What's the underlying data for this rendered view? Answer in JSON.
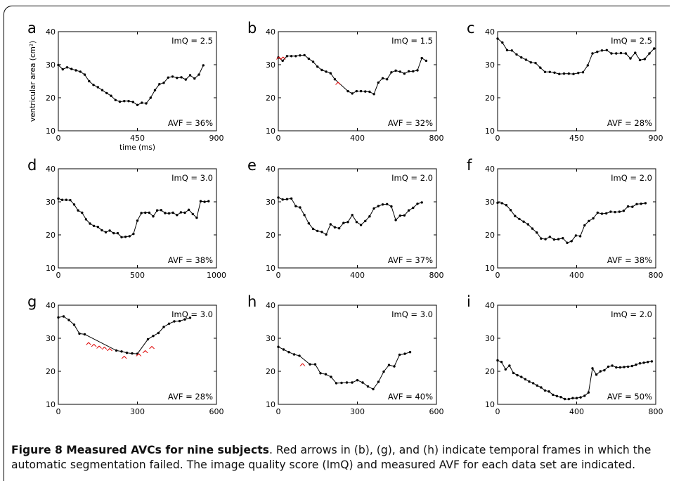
{
  "caption": {
    "title": "Figure 8 Measured AVCs for nine subjects",
    "text": ". Red arrows in (b), (g), and (h) indicate temporal frames in which the automatic segmentation failed. The image quality score (ImQ) and measured AVF for each data set are indicated."
  },
  "colors": {
    "line": "#000000",
    "arrow": "#e01010",
    "marker": "#000000"
  },
  "chart_data": [
    {
      "panel": "a",
      "type": "line",
      "xlim": [
        0,
        900
      ],
      "xticks": [
        0,
        450,
        900
      ],
      "ylim": [
        10,
        40
      ],
      "yticks": [
        10,
        20,
        30,
        40
      ],
      "xlabel": "time (ms)",
      "ylabel": "ventricular area (cm²)",
      "imq": "ImQ = 2.5",
      "avf": "AVF = 36%",
      "x": [
        0,
        25,
        50,
        75,
        100,
        125,
        150,
        175,
        200,
        225,
        250,
        275,
        300,
        325,
        350,
        375,
        400,
        425,
        450,
        475,
        500,
        525,
        550,
        575,
        600,
        625,
        650,
        675,
        700,
        725,
        750,
        775,
        800,
        825
      ],
      "y": [
        29.9,
        28.6,
        29.2,
        28.7,
        28.3,
        27.9,
        27.0,
        25.0,
        23.9,
        23.2,
        22.3,
        21.4,
        20.6,
        19.3,
        18.8,
        19.0,
        19.0,
        18.7,
        17.8,
        18.5,
        18.3,
        20.0,
        22.3,
        24.1,
        24.5,
        26.1,
        26.4,
        26.0,
        26.2,
        25.5,
        26.8,
        25.8,
        27.0,
        29.8
      ],
      "arrows": []
    },
    {
      "panel": "b",
      "type": "line",
      "xlim": [
        0,
        800
      ],
      "xticks": [
        0,
        400,
        800
      ],
      "ylim": [
        10,
        40
      ],
      "yticks": [
        10,
        20,
        30,
        40
      ],
      "xlabel": "",
      "ylabel": "",
      "imq": "ImQ = 1.5",
      "avf": "AVF = 32%",
      "x": [
        0,
        22,
        44,
        66,
        88,
        110,
        132,
        154,
        176,
        198,
        220,
        242,
        264,
        286,
        352,
        374,
        396,
        418,
        440,
        462,
        484,
        506,
        528,
        550,
        572,
        594,
        616,
        638,
        660,
        682,
        704,
        726,
        748
      ],
      "y": [
        32.2,
        31.2,
        32.6,
        32.6,
        32.6,
        32.8,
        32.9,
        31.8,
        30.9,
        29.4,
        28.4,
        27.9,
        27.4,
        25.6,
        22.0,
        21.3,
        22.0,
        22.0,
        21.9,
        21.8,
        21.1,
        24.6,
        25.9,
        25.6,
        27.7,
        28.2,
        27.9,
        27.3,
        28.0,
        28.0,
        28.3,
        32.0,
        31.2
      ],
      "arrows": [
        [
          3,
          32.2
        ],
        [
          24,
          32.2
        ],
        [
          302,
          24.6
        ]
      ]
    },
    {
      "panel": "c",
      "type": "line",
      "xlim": [
        0,
        900
      ],
      "xticks": [
        0,
        450,
        900
      ],
      "ylim": [
        10,
        40
      ],
      "yticks": [
        10,
        20,
        30,
        40
      ],
      "xlabel": "",
      "ylabel": "",
      "imq": "ImQ = 2.5",
      "avf": "AVF = 28%",
      "x": [
        0,
        27,
        54,
        81,
        108,
        135,
        162,
        189,
        216,
        243,
        270,
        297,
        324,
        351,
        378,
        405,
        432,
        459,
        486,
        513,
        540,
        567,
        594,
        621,
        648,
        675,
        702,
        729,
        756,
        783,
        810,
        837,
        864,
        891
      ],
      "y": [
        37.9,
        36.7,
        34.4,
        34.3,
        33.1,
        32.2,
        31.5,
        30.7,
        30.5,
        29.1,
        27.8,
        27.8,
        27.6,
        27.2,
        27.3,
        27.3,
        27.2,
        27.5,
        27.7,
        29.8,
        33.4,
        33.9,
        34.3,
        34.4,
        33.4,
        33.4,
        33.5,
        33.4,
        31.9,
        33.6,
        31.4,
        31.7,
        33.4,
        34.9
      ],
      "arrows": []
    },
    {
      "panel": "d",
      "type": "line",
      "xlim": [
        0,
        1000
      ],
      "xticks": [
        0,
        500,
        1000
      ],
      "ylim": [
        10,
        40
      ],
      "yticks": [
        10,
        20,
        30,
        40
      ],
      "xlabel": "",
      "ylabel": "",
      "imq": "ImQ = 3.0",
      "avf": "AVF = 38%",
      "x": [
        0,
        25,
        50,
        75,
        100,
        125,
        150,
        175,
        200,
        225,
        250,
        275,
        300,
        325,
        350,
        375,
        400,
        425,
        450,
        475,
        500,
        525,
        550,
        575,
        600,
        625,
        650,
        675,
        700,
        725,
        750,
        775,
        800,
        825,
        850,
        875,
        900,
        925,
        950
      ],
      "y": [
        31.0,
        30.6,
        30.6,
        30.5,
        29.2,
        27.4,
        26.7,
        24.7,
        23.4,
        22.7,
        22.4,
        21.4,
        20.8,
        21.3,
        20.5,
        20.5,
        19.3,
        19.4,
        19.6,
        20.3,
        24.3,
        26.6,
        26.7,
        26.7,
        25.6,
        27.4,
        27.5,
        26.6,
        26.5,
        26.7,
        26.0,
        26.8,
        26.7,
        27.6,
        26.3,
        25.2,
        30.2,
        30.0,
        30.2
      ],
      "arrows": []
    },
    {
      "panel": "e",
      "type": "line",
      "xlim": [
        0,
        800
      ],
      "xticks": [
        0,
        400,
        800
      ],
      "ylim": [
        10,
        40
      ],
      "yticks": [
        10,
        20,
        30,
        40
      ],
      "xlabel": "",
      "ylabel": "",
      "imq": "ImQ = 2.0",
      "avf": "AVF = 37%",
      "x": [
        0,
        22,
        44,
        66,
        88,
        110,
        132,
        154,
        176,
        198,
        220,
        242,
        264,
        286,
        308,
        330,
        352,
        374,
        396,
        418,
        440,
        462,
        484,
        506,
        528,
        550,
        572,
        594,
        616,
        638,
        660,
        682,
        704,
        726
      ],
      "y": [
        31.3,
        30.7,
        30.8,
        31.0,
        28.7,
        28.3,
        26.0,
        23.5,
        21.8,
        21.2,
        20.9,
        20.1,
        23.2,
        22.3,
        22.0,
        23.6,
        23.9,
        26.0,
        23.9,
        23.0,
        24.2,
        25.6,
        28.0,
        28.7,
        29.2,
        29.3,
        28.6,
        24.5,
        25.8,
        25.9,
        27.4,
        28.2,
        29.4,
        29.8
      ],
      "arrows": []
    },
    {
      "panel": "f",
      "type": "line",
      "xlim": [
        0,
        800
      ],
      "xticks": [
        0,
        400,
        800
      ],
      "ylim": [
        10,
        40
      ],
      "yticks": [
        10,
        20,
        30,
        40
      ],
      "xlabel": "",
      "ylabel": "",
      "imq": "ImQ = 2.0",
      "avf": "AVF = 38%",
      "x": [
        0,
        22,
        44,
        66,
        88,
        110,
        132,
        154,
        176,
        198,
        220,
        242,
        264,
        286,
        308,
        330,
        352,
        374,
        396,
        418,
        440,
        462,
        484,
        506,
        528,
        550,
        572,
        594,
        616,
        638,
        660,
        682,
        704,
        726,
        748
      ],
      "y": [
        29.7,
        29.6,
        29.0,
        27.5,
        25.7,
        24.8,
        24.0,
        23.2,
        21.9,
        20.7,
        18.9,
        18.7,
        19.4,
        18.6,
        18.7,
        19.0,
        17.6,
        18.1,
        19.8,
        19.6,
        22.9,
        24.2,
        25.0,
        26.7,
        26.4,
        26.5,
        27.0,
        26.9,
        27.0,
        27.3,
        28.6,
        28.5,
        29.3,
        29.4,
        29.6
      ],
      "arrows": []
    },
    {
      "panel": "g",
      "type": "line",
      "xlim": [
        0,
        600
      ],
      "xticks": [
        0,
        300,
        600
      ],
      "ylim": [
        10,
        40
      ],
      "yticks": [
        10,
        20,
        30,
        40
      ],
      "xlabel": "",
      "ylabel": "",
      "imq": "ImQ = 3.0",
      "avf": "AVF = 28%",
      "x": [
        0,
        20,
        40,
        60,
        80,
        100,
        220,
        240,
        260,
        280,
        300,
        340,
        360,
        380,
        400,
        420,
        440,
        460,
        480,
        500
      ],
      "y": [
        36.3,
        36.6,
        35.5,
        34.1,
        31.4,
        31.2,
        26.3,
        26.0,
        25.6,
        25.4,
        25.3,
        29.7,
        30.7,
        31.6,
        33.4,
        34.4,
        35.1,
        35.2,
        35.7,
        36.2
      ],
      "arrows": [
        [
          115,
          28.6
        ],
        [
          135,
          28.1
        ],
        [
          155,
          27.6
        ],
        [
          175,
          27.2
        ],
        [
          195,
          26.8
        ],
        [
          250,
          24.5
        ],
        [
          305,
          25.2
        ],
        [
          330,
          26.2
        ],
        [
          355,
          27.5
        ]
      ]
    },
    {
      "panel": "h",
      "type": "line",
      "xlim": [
        0,
        600
      ],
      "xticks": [
        0,
        300,
        600
      ],
      "ylim": [
        10,
        40
      ],
      "yticks": [
        10,
        20,
        30,
        40
      ],
      "xlabel": "",
      "ylabel": "",
      "imq": "ImQ = 3.0",
      "avf": "AVF = 40%",
      "x": [
        0,
        20,
        40,
        60,
        80,
        120,
        140,
        160,
        180,
        200,
        220,
        240,
        260,
        280,
        300,
        320,
        340,
        360,
        380,
        400,
        420,
        440,
        460,
        480,
        500
      ],
      "y": [
        27.4,
        26.6,
        25.8,
        25.1,
        24.7,
        22.1,
        22.1,
        19.4,
        19.1,
        18.3,
        16.4,
        16.5,
        16.6,
        16.6,
        17.3,
        16.6,
        15.4,
        14.6,
        16.8,
        19.9,
        21.9,
        21.5,
        25.0,
        25.3,
        25.8
      ],
      "arrows": [
        [
          92,
          22.2
        ]
      ]
    },
    {
      "panel": "i",
      "type": "line",
      "xlim": [
        0,
        800
      ],
      "xticks": [
        0,
        400,
        800
      ],
      "ylim": [
        10,
        40
      ],
      "yticks": [
        10,
        20,
        30,
        40
      ],
      "xlabel": "",
      "ylabel": "",
      "imq": "ImQ = 2.0",
      "avf": "AVF = 50%",
      "x": [
        0,
        20,
        40,
        60,
        80,
        100,
        120,
        140,
        160,
        180,
        200,
        220,
        240,
        260,
        280,
        300,
        320,
        340,
        360,
        380,
        400,
        420,
        440,
        460,
        480,
        500,
        520,
        540,
        560,
        580,
        600,
        620,
        640,
        660,
        680,
        700,
        720,
        740,
        760,
        780
      ],
      "y": [
        23.3,
        22.8,
        20.6,
        21.7,
        19.5,
        18.8,
        18.3,
        17.6,
        16.9,
        16.4,
        15.7,
        15.1,
        14.2,
        13.9,
        12.9,
        12.5,
        12.2,
        11.6,
        11.6,
        11.9,
        11.9,
        12.1,
        12.6,
        13.6,
        20.9,
        19.0,
        20.0,
        20.3,
        21.4,
        21.7,
        21.2,
        21.2,
        21.3,
        21.4,
        21.6,
        22.0,
        22.4,
        22.6,
        22.8,
        23.0
      ],
      "arrows": []
    }
  ]
}
